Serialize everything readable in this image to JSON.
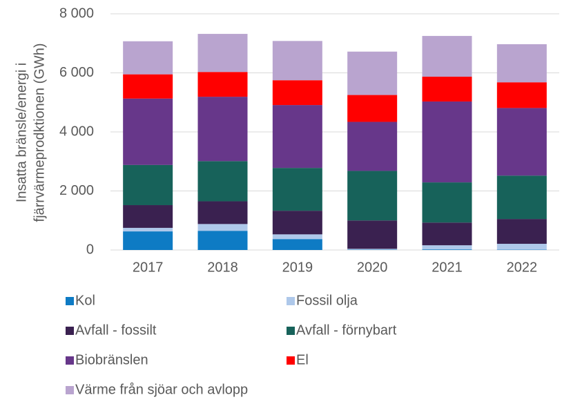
{
  "chart_data": {
    "type": "stacked_bar",
    "ylabel_lines": [
      "Insatta bränsle/energi i",
      "fjärrvärmeprodktionen (GWh)"
    ],
    "categories": [
      "2017",
      "2018",
      "2019",
      "2020",
      "2021",
      "2022"
    ],
    "series": [
      {
        "name": "Kol",
        "color": "#0e7bc4",
        "values": [
          630,
          650,
          370,
          10,
          20,
          10
        ]
      },
      {
        "name": "Fossil olja",
        "color": "#aec8ea",
        "values": [
          120,
          230,
          160,
          30,
          140,
          200
        ]
      },
      {
        "name": "Avfall - fossilt",
        "color": "#3a2150",
        "values": [
          770,
          770,
          800,
          960,
          770,
          840
        ]
      },
      {
        "name": "Avfall - förnybart",
        "color": "#17625a",
        "values": [
          1360,
          1360,
          1450,
          1680,
          1360,
          1470
        ]
      },
      {
        "name": "Biobränslen",
        "color": "#67378a",
        "values": [
          2250,
          2180,
          2130,
          1660,
          2740,
          2290
        ]
      },
      {
        "name": "El",
        "color": "#ff0000",
        "values": [
          820,
          840,
          840,
          910,
          840,
          870
        ]
      },
      {
        "name": "Värme från sjöar och avlopp",
        "color": "#b9a4cf",
        "values": [
          1120,
          1290,
          1330,
          1470,
          1380,
          1290
        ]
      }
    ],
    "ylim": [
      0,
      8000
    ],
    "yticks": [
      0,
      {
        "value": 2000,
        "label": "2 000"
      },
      {
        "value": 4000,
        "label": "4 000"
      },
      {
        "value": 6000,
        "label": "6 000"
      },
      {
        "value": 8000,
        "label": "8 000"
      }
    ],
    "grid": true
  }
}
